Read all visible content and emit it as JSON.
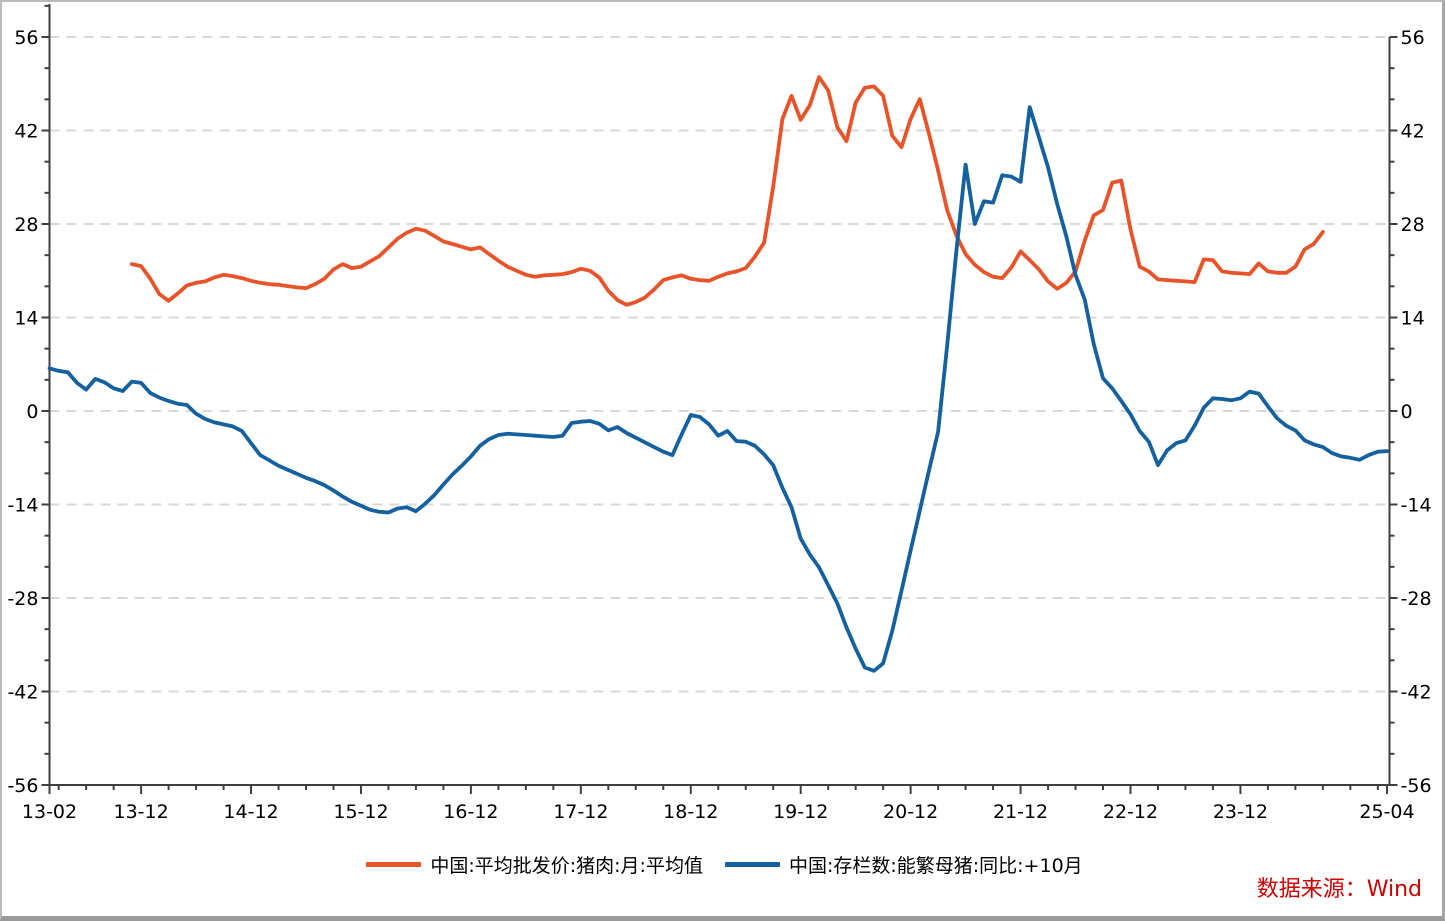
{
  "source_note": {
    "text": "数据来源：Wind",
    "color": "#cc0000"
  },
  "legend": {
    "items": [
      {
        "label": "中国:平均批发价:猪肉:月:平均值",
        "color": "#e8542a"
      },
      {
        "label": "中国:存栏数:能繁母猪:同比:+10月",
        "color": "#15609f"
      }
    ]
  },
  "chart_data": {
    "type": "line",
    "title": "",
    "xlabel": "",
    "ylabel": "",
    "x_unit": "year-month",
    "x_start": "13-02",
    "x_end": "25-04",
    "total_months": 146,
    "x_tick_labels": [
      "13-02",
      "13-12",
      "14-12",
      "15-12",
      "16-12",
      "17-12",
      "18-12",
      "19-12",
      "20-12",
      "21-12",
      "22-12",
      "23-12",
      "25-04"
    ],
    "x_major_tick_months": [
      0,
      10,
      22,
      34,
      46,
      58,
      70,
      82,
      94,
      106,
      118,
      130,
      146
    ],
    "x_minor_tick_step_months": 3,
    "ylim": [
      -56,
      56
    ],
    "y_major_step": 14,
    "y_minor_divisions": 3,
    "y_tick_labels": [
      "-56",
      "-42",
      "-28",
      "-14",
      "0",
      "14",
      "28",
      "42",
      "56"
    ],
    "grid": "horizontal dashed, both y axes labeled left and right",
    "legend_position": "bottom-center",
    "colors": {
      "grid": "#d8d8d8",
      "axis": "#3f3f3f",
      "tick_label": "#000000"
    },
    "series": [
      {
        "name": "中国:平均批发价:猪肉:月:平均值",
        "color": "#e8542a",
        "start_month_index": 9,
        "values": [
          22.0,
          21.7,
          19.8,
          17.5,
          16.5,
          17.6,
          18.8,
          19.2,
          19.4,
          20.0,
          20.4,
          20.2,
          19.9,
          19.5,
          19.2,
          19.0,
          18.9,
          18.7,
          18.5,
          18.4,
          19.0,
          19.8,
          21.2,
          22.0,
          21.4,
          21.6,
          22.4,
          23.2,
          24.5,
          25.8,
          26.7,
          27.3,
          27.0,
          26.2,
          25.4,
          25.0,
          24.6,
          24.2,
          24.5,
          23.5,
          22.5,
          21.6,
          21.0,
          20.4,
          20.1,
          20.3,
          20.4,
          20.5,
          20.8,
          21.3,
          21.0,
          20.0,
          18.0,
          16.6,
          15.9,
          16.3,
          17.0,
          18.2,
          19.6,
          20.0,
          20.3,
          19.8,
          19.6,
          19.5,
          20.1,
          20.6,
          20.9,
          21.4,
          23.1,
          25.2,
          33.6,
          43.7,
          47.2,
          43.6,
          45.8,
          50.0,
          48.0,
          42.5,
          40.4,
          46.2,
          48.4,
          48.6,
          47.2,
          41.2,
          39.5,
          43.7,
          46.7,
          41.5,
          36.0,
          30.0,
          26.3,
          23.5,
          21.9,
          20.8,
          20.1,
          19.9,
          21.5,
          23.9,
          22.6,
          21.2,
          19.4,
          18.3,
          19.2,
          20.9,
          25.5,
          29.3,
          30.1,
          34.2,
          34.5,
          27.2,
          21.6,
          20.9,
          19.7,
          19.6,
          19.5,
          19.4,
          19.3,
          22.7,
          22.6,
          20.9,
          20.7,
          20.6,
          20.5,
          22.1,
          20.9,
          20.7,
          20.7,
          21.6,
          24.2,
          25.0,
          26.8
        ]
      },
      {
        "name": "中国:存栏数:能繁母猪:同比:+10月",
        "color": "#15609f",
        "start_month_index": 0,
        "values": [
          6.4,
          6.0,
          5.8,
          4.2,
          3.2,
          4.8,
          4.3,
          3.4,
          3.0,
          4.4,
          4.2,
          2.7,
          2.0,
          1.5,
          1.1,
          0.9,
          -0.4,
          -1.2,
          -1.7,
          -2.0,
          -2.3,
          -3.0,
          -4.8,
          -6.6,
          -7.4,
          -8.2,
          -8.8,
          -9.4,
          -10.0,
          -10.5,
          -11.1,
          -11.9,
          -12.8,
          -13.6,
          -14.2,
          -14.8,
          -15.1,
          -15.2,
          -14.6,
          -14.4,
          -15.0,
          -13.9,
          -12.6,
          -11.0,
          -9.5,
          -8.2,
          -6.8,
          -5.2,
          -4.2,
          -3.6,
          -3.4,
          -3.5,
          -3.6,
          -3.7,
          -3.8,
          -3.9,
          -3.7,
          -1.8,
          -1.6,
          -1.5,
          -1.9,
          -2.9,
          -2.4,
          -3.3,
          -4.0,
          -4.7,
          -5.4,
          -6.1,
          -6.6,
          -3.5,
          -0.6,
          -0.9,
          -2.0,
          -3.7,
          -3.0,
          -4.5,
          -4.6,
          -5.2,
          -6.5,
          -8.1,
          -11.5,
          -14.4,
          -19.1,
          -21.5,
          -23.4,
          -26.1,
          -28.8,
          -32.4,
          -35.6,
          -38.4,
          -38.9,
          -37.8,
          -32.9,
          -26.9,
          -20.9,
          -14.9,
          -8.9,
          -3.1,
          10.0,
          24.0,
          36.9,
          28.0,
          31.4,
          31.2,
          35.3,
          35.1,
          34.3,
          45.5,
          41.0,
          36.5,
          31.0,
          26.1,
          20.4,
          16.7,
          10.0,
          4.9,
          3.4,
          1.5,
          -0.5,
          -3.0,
          -4.6,
          -8.1,
          -5.9,
          -4.8,
          -4.4,
          -2.2,
          0.5,
          1.9,
          1.8,
          1.6,
          1.9,
          2.9,
          2.6,
          0.7,
          -1.1,
          -2.2,
          -2.9,
          -4.4,
          -5.0,
          -5.4,
          -6.3,
          -6.8,
          -7.0,
          -7.3,
          -6.6,
          -6.1,
          -6.0
        ]
      }
    ]
  }
}
